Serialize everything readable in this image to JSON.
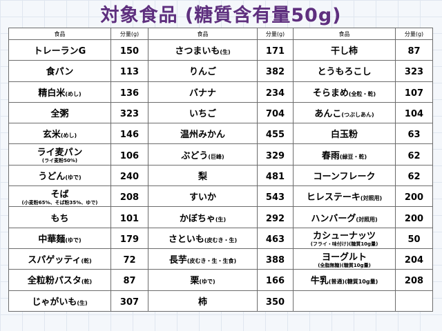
{
  "title": "対象食品 (糖質含有量50g)",
  "headers": [
    "食品",
    "分量(g)",
    "食品",
    "分量(g)",
    "食品",
    "分量(g)"
  ],
  "rows": [
    [
      {
        "name": "トレーランG",
        "note": "",
        "sub": "",
        "amount": "150"
      },
      {
        "name": "さつまいも",
        "note": "(生)",
        "sub": "",
        "amount": "171"
      },
      {
        "name": "干し柿",
        "note": "",
        "sub": "",
        "amount": "87"
      }
    ],
    [
      {
        "name": "食パン",
        "note": "",
        "sub": "",
        "amount": "113"
      },
      {
        "name": "りんご",
        "note": "",
        "sub": "",
        "amount": "382"
      },
      {
        "name": "とうもろこし",
        "note": "",
        "sub": "",
        "amount": "323"
      }
    ],
    [
      {
        "name": "精白米",
        "note": "(めし)",
        "sub": "",
        "amount": "136"
      },
      {
        "name": "バナナ",
        "note": "",
        "sub": "",
        "amount": "234"
      },
      {
        "name": "そらまめ",
        "note": "(全粒・乾)",
        "sub": "",
        "amount": "107"
      }
    ],
    [
      {
        "name": "全粥",
        "note": "",
        "sub": "",
        "amount": "323"
      },
      {
        "name": "いちご",
        "note": "",
        "sub": "",
        "amount": "704"
      },
      {
        "name": "あんこ",
        "note": "(つぶしあん)",
        "sub": "",
        "amount": "104"
      }
    ],
    [
      {
        "name": "玄米",
        "note": "(めし)",
        "sub": "",
        "amount": "146"
      },
      {
        "name": "温州みかん",
        "note": "",
        "sub": "",
        "amount": "455"
      },
      {
        "name": "白玉粉",
        "note": "",
        "sub": "",
        "amount": "63"
      }
    ],
    [
      {
        "name": "ライ麦パン",
        "note": "",
        "sub": "(ライ麦粉50%)",
        "amount": "106"
      },
      {
        "name": "ぶどう",
        "note": "(巨峰)",
        "sub": "",
        "amount": "329"
      },
      {
        "name": "春雨",
        "note": "(緑豆・乾)",
        "sub": "",
        "amount": "62"
      }
    ],
    [
      {
        "name": "うどん",
        "note": "(ゆで)",
        "sub": "",
        "amount": "240"
      },
      {
        "name": "梨",
        "note": "",
        "sub": "",
        "amount": "481"
      },
      {
        "name": "コーンフレーク",
        "note": "",
        "sub": "",
        "amount": "62"
      }
    ],
    [
      {
        "name": "そば",
        "note": "",
        "sub": "(小麦粉65%、そば粉35%、ゆで)",
        "amount": "208"
      },
      {
        "name": "すいか",
        "note": "",
        "sub": "",
        "amount": "543"
      },
      {
        "name": "ヒレステーキ",
        "note": "(対照用)",
        "sub": "",
        "amount": "200"
      }
    ],
    [
      {
        "name": "もち",
        "note": "",
        "sub": "",
        "amount": "101"
      },
      {
        "name": "かぼちゃ",
        "note": "(生)",
        "sub": "",
        "amount": "292"
      },
      {
        "name": "ハンバーグ",
        "note": "(対照用)",
        "sub": "",
        "amount": "200"
      }
    ],
    [
      {
        "name": "中華麺",
        "note": "(ゆで)",
        "sub": "",
        "amount": "179"
      },
      {
        "name": "さといも",
        "note": "(皮むき・生)",
        "sub": "",
        "amount": "463"
      },
      {
        "name": "カシューナッツ",
        "note": "",
        "sub": "(フライ・味付け)(糖質10g量)",
        "amount": "50"
      }
    ],
    [
      {
        "name": "スパゲッティ",
        "note": "(乾)",
        "sub": "",
        "amount": "72"
      },
      {
        "name": "長芋",
        "note": "(皮むき・生・生食)",
        "sub": "",
        "amount": "388"
      },
      {
        "name": "ヨーグルト",
        "note": "",
        "sub": "(全脂無糖)(糖質10g量)",
        "amount": "204"
      }
    ],
    [
      {
        "name": "全粒粉パスタ",
        "note": "(乾)",
        "sub": "",
        "amount": "87"
      },
      {
        "name": "栗",
        "note": "(ゆで)",
        "sub": "",
        "amount": "166"
      },
      {
        "name": "牛乳",
        "note": "(普通)(糖質10g量)",
        "sub": "",
        "amount": "208"
      }
    ],
    [
      {
        "name": "じゃがいも",
        "note": "(生)",
        "sub": "",
        "amount": "307"
      },
      {
        "name": "柿",
        "note": "",
        "sub": "",
        "amount": "350"
      },
      null
    ]
  ]
}
